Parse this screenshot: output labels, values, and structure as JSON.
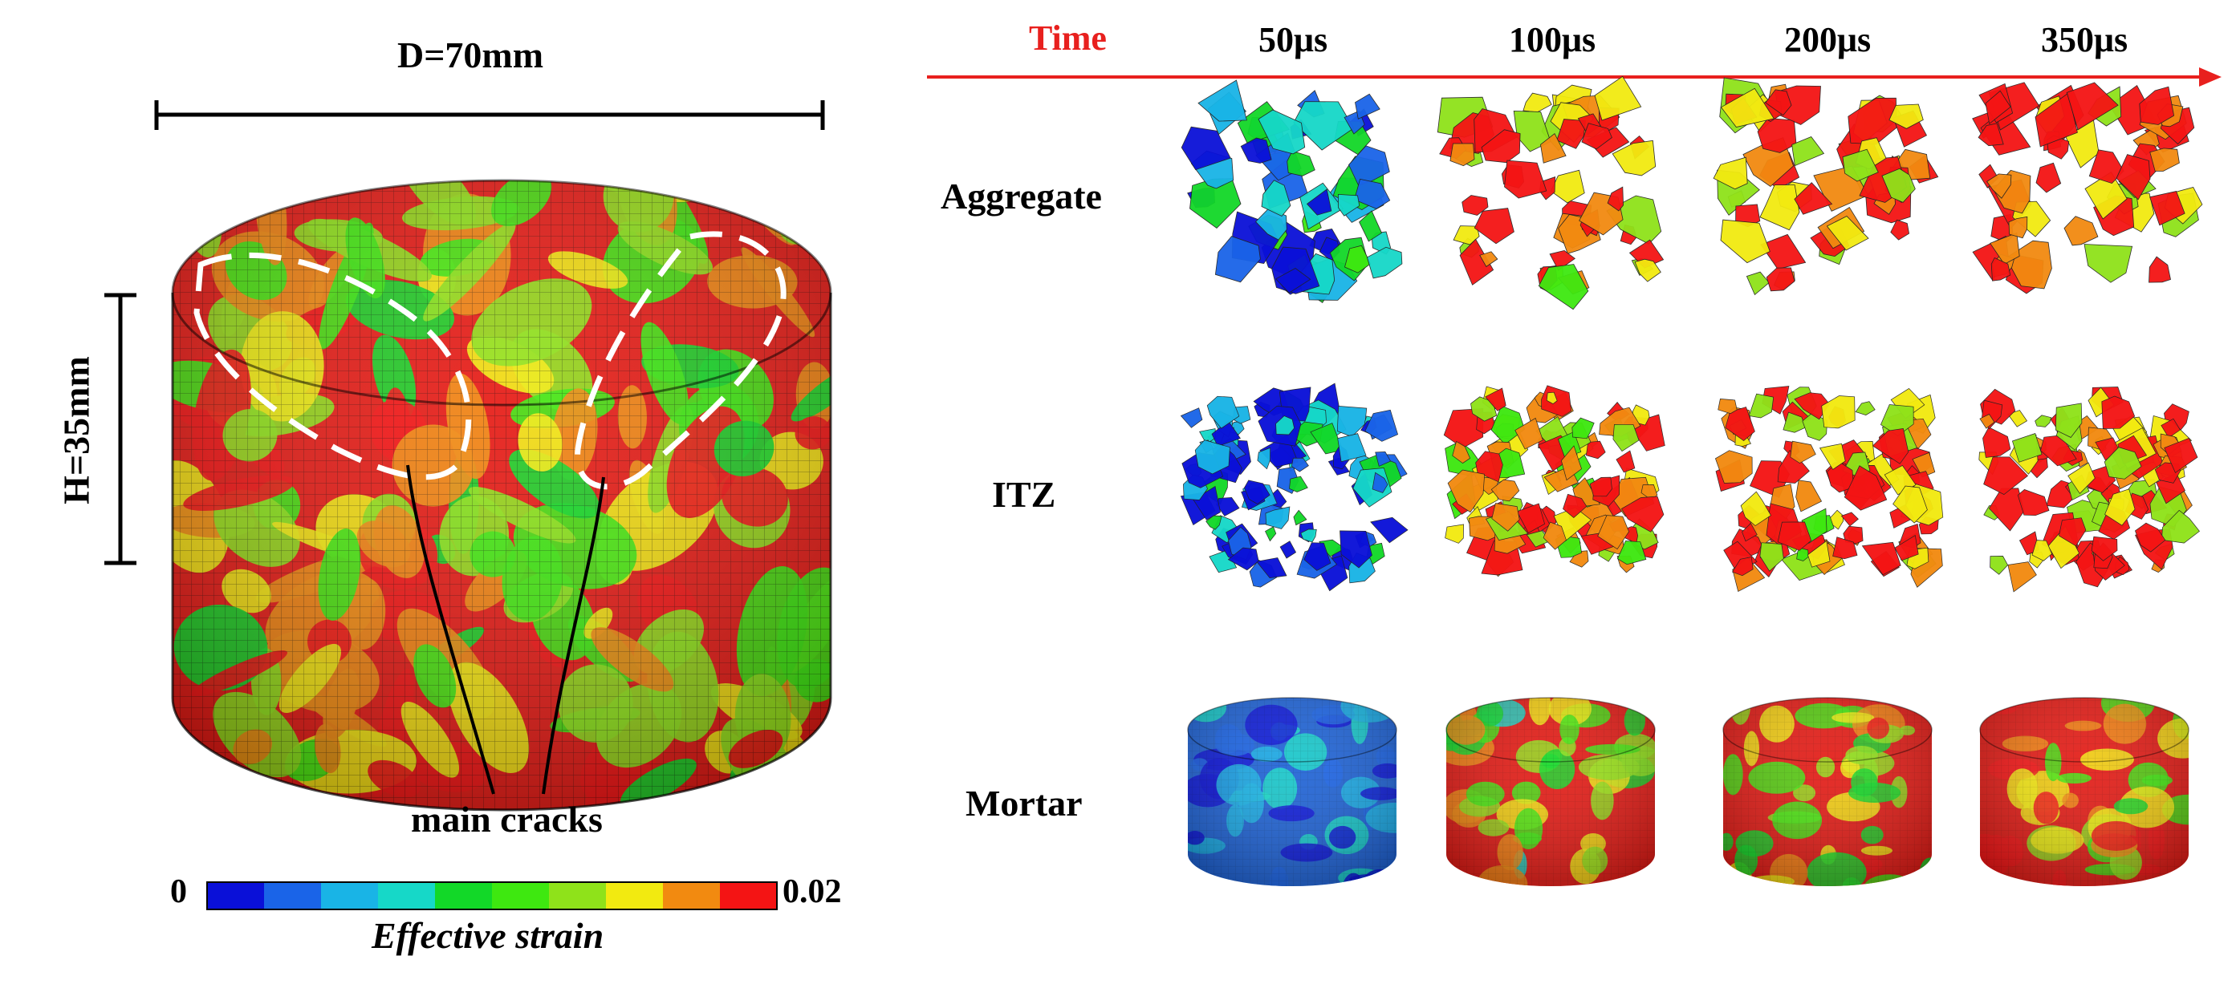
{
  "dimensions": {
    "diameter": "D=70mm",
    "height": "H=35mm"
  },
  "crack_label": "main cracks",
  "time_axis": {
    "label": "Time",
    "label_color": "#e8201e",
    "times": [
      "50μs",
      "100μs",
      "200μs",
      "350μs"
    ]
  },
  "rows": [
    {
      "label": "Aggregate",
      "kind": "fragments",
      "damage": [
        0.25,
        0.85,
        0.88,
        0.9
      ]
    },
    {
      "label": "ITZ",
      "kind": "dense",
      "damage": [
        0.2,
        0.8,
        0.85,
        0.88
      ]
    },
    {
      "label": "Mortar",
      "kind": "cylinder",
      "damage": [
        0.12,
        0.62,
        0.7,
        0.75
      ]
    }
  ],
  "main_specimen": {
    "damage": 0.7
  },
  "colorbar": {
    "min": "0",
    "max": "0.02",
    "title": "Effective strain",
    "colors": [
      "#0a10d8",
      "#1a64e8",
      "#19b4e6",
      "#16d8c8",
      "#12d828",
      "#3ee810",
      "#8fe21a",
      "#f2ea10",
      "#f28a10",
      "#f41414"
    ]
  }
}
